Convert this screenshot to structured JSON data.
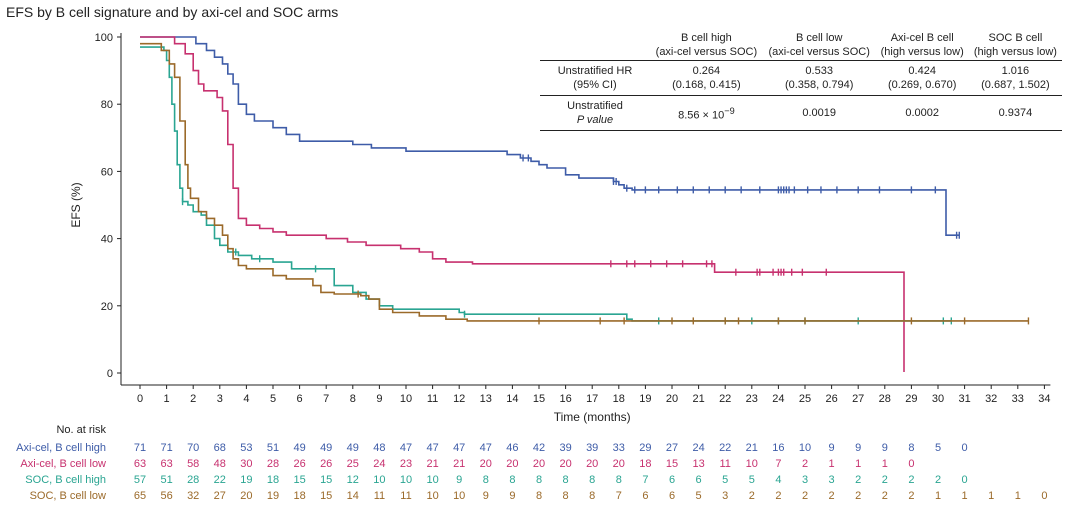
{
  "chart_data": {
    "type": "line",
    "subtype": "kaplan-meier step",
    "title": "EFS by B cell signature and by axi-cel and SOC arms",
    "xlabel": "Time (months)",
    "ylabel": "EFS (%)",
    "xlim": [
      0,
      34
    ],
    "ylim": [
      0,
      100
    ],
    "xticks": [
      0,
      1,
      2,
      3,
      4,
      5,
      6,
      7,
      8,
      9,
      10,
      11,
      12,
      13,
      14,
      15,
      16,
      17,
      18,
      19,
      20,
      21,
      22,
      23,
      24,
      25,
      26,
      27,
      28,
      29,
      30,
      31,
      32,
      33,
      34
    ],
    "yticks": [
      0,
      20,
      40,
      60,
      80,
      100
    ],
    "series": [
      {
        "name": "Axi-cel, B cell high",
        "color": "#3e5ca8",
        "steps": [
          [
            0,
            100
          ],
          [
            1.9,
            100
          ],
          [
            2.1,
            98
          ],
          [
            2.5,
            96
          ],
          [
            2.8,
            94
          ],
          [
            3.1,
            92
          ],
          [
            3.3,
            89
          ],
          [
            3.5,
            86
          ],
          [
            3.7,
            80
          ],
          [
            4.0,
            77
          ],
          [
            4.3,
            75
          ],
          [
            5.0,
            73
          ],
          [
            5.5,
            71
          ],
          [
            6.0,
            69
          ],
          [
            8.0,
            68
          ],
          [
            8.7,
            67
          ],
          [
            10.0,
            66
          ],
          [
            12.5,
            66
          ],
          [
            13.8,
            65
          ],
          [
            14.3,
            64
          ],
          [
            14.7,
            63
          ],
          [
            15.0,
            62
          ],
          [
            15.3,
            61
          ],
          [
            16.0,
            59
          ],
          [
            16.5,
            58
          ],
          [
            17.8,
            57
          ],
          [
            18.0,
            56
          ],
          [
            18.2,
            55
          ],
          [
            18.5,
            54.5
          ],
          [
            30.2,
            54.5
          ],
          [
            30.3,
            41
          ],
          [
            30.8,
            41
          ]
        ],
        "censor_x": [
          14.4,
          14.6,
          17.8,
          17.9,
          18.3,
          18.6,
          19.0,
          19.5,
          20.2,
          20.8,
          21.4,
          22.0,
          22.6,
          23.3,
          24.0,
          24.1,
          24.2,
          24.3,
          24.4,
          24.6,
          25.1,
          25.6,
          26.2,
          27.0,
          27.8,
          29.0,
          29.9,
          30.7,
          30.8
        ]
      },
      {
        "name": "Axi-cel, B cell low",
        "color": "#c7316f",
        "steps": [
          [
            0,
            100
          ],
          [
            1.3,
            98
          ],
          [
            1.7,
            95
          ],
          [
            2.0,
            90
          ],
          [
            2.2,
            86
          ],
          [
            2.4,
            84
          ],
          [
            2.9,
            82
          ],
          [
            3.1,
            78
          ],
          [
            3.3,
            68
          ],
          [
            3.5,
            55
          ],
          [
            3.7,
            46
          ],
          [
            4.0,
            44
          ],
          [
            4.5,
            43
          ],
          [
            5.0,
            42
          ],
          [
            5.5,
            41
          ],
          [
            7.0,
            40
          ],
          [
            7.8,
            39
          ],
          [
            8.5,
            38
          ],
          [
            9.8,
            37
          ],
          [
            10.5,
            36
          ],
          [
            11.0,
            34
          ],
          [
            11.5,
            33
          ],
          [
            12.0,
            33
          ],
          [
            12.5,
            32.5
          ],
          [
            21.5,
            32.5
          ],
          [
            21.6,
            30
          ],
          [
            28.7,
            30
          ],
          [
            28.72,
            0.3
          ]
        ],
        "censor_x": [
          17.7,
          18.3,
          18.6,
          19.2,
          19.8,
          20.4,
          21.3,
          21.5,
          22.4,
          23.2,
          23.3,
          23.8,
          24.0,
          24.1,
          24.2,
          24.5,
          24.9,
          25.8
        ]
      },
      {
        "name": "SOC, B cell high",
        "color": "#2aa592",
        "steps": [
          [
            0,
            97
          ],
          [
            0.9,
            96
          ],
          [
            1.0,
            93
          ],
          [
            1.1,
            88
          ],
          [
            1.2,
            80
          ],
          [
            1.3,
            72
          ],
          [
            1.4,
            62
          ],
          [
            1.5,
            55
          ],
          [
            1.6,
            51
          ],
          [
            1.8,
            50
          ],
          [
            2.0,
            48
          ],
          [
            2.3,
            47
          ],
          [
            2.5,
            44
          ],
          [
            2.8,
            40
          ],
          [
            3.0,
            38
          ],
          [
            3.3,
            36
          ],
          [
            3.7,
            35
          ],
          [
            4.2,
            34
          ],
          [
            5.0,
            33
          ],
          [
            5.7,
            31
          ],
          [
            6.5,
            31
          ],
          [
            7.3,
            26
          ],
          [
            8.0,
            24
          ],
          [
            8.5,
            22
          ],
          [
            9.0,
            20
          ],
          [
            9.5,
            19
          ],
          [
            10.0,
            19
          ],
          [
            12.0,
            18
          ],
          [
            12.2,
            17.5
          ],
          [
            18.0,
            17.5
          ],
          [
            18.3,
            16
          ],
          [
            18.5,
            15.5
          ],
          [
            30.5,
            15.5
          ]
        ],
        "censor_x": [
          1.6,
          3.6,
          4.5,
          6.6,
          12.2,
          19.5,
          22.0,
          23.0,
          24.0,
          25.0,
          27.0,
          30.2,
          30.5
        ]
      },
      {
        "name": "SOC, B cell low",
        "color": "#9b6a2a",
        "steps": [
          [
            0,
            98
          ],
          [
            0.8,
            96
          ],
          [
            1.1,
            92
          ],
          [
            1.3,
            88
          ],
          [
            1.5,
            75
          ],
          [
            1.7,
            62
          ],
          [
            1.8,
            55
          ],
          [
            1.9,
            52
          ],
          [
            2.2,
            48
          ],
          [
            2.5,
            46
          ],
          [
            2.8,
            44
          ],
          [
            3.1,
            41
          ],
          [
            3.3,
            37
          ],
          [
            3.5,
            34
          ],
          [
            3.7,
            32
          ],
          [
            4.0,
            31
          ],
          [
            5.0,
            29
          ],
          [
            5.5,
            28
          ],
          [
            6.5,
            26
          ],
          [
            6.8,
            24
          ],
          [
            7.3,
            23.5
          ],
          [
            8.3,
            23
          ],
          [
            8.6,
            22
          ],
          [
            9.0,
            19
          ],
          [
            9.5,
            18
          ],
          [
            10.5,
            17
          ],
          [
            11.5,
            16
          ],
          [
            12.0,
            16
          ],
          [
            12.3,
            15.5
          ],
          [
            33.4,
            15.5
          ]
        ],
        "censor_x": [
          8.2,
          15.0,
          17.3,
          18.2,
          20.0,
          20.8,
          22.0,
          22.5,
          24.0,
          25.0,
          29.0,
          31.0,
          33.4
        ]
      }
    ]
  },
  "hr_table": {
    "headers": [
      {
        "line1": "B cell high",
        "line2": "(axi-cel versus SOC)"
      },
      {
        "line1": "B cell low",
        "line2": "(axi-cel versus SOC)"
      },
      {
        "line1": "Axi-cel B cell",
        "line2": "(high versus low)"
      },
      {
        "line1": "SOC B cell",
        "line2": "(high versus low)"
      }
    ],
    "row_hr": {
      "label1": "Unstratified HR",
      "label2": "(95% CI)",
      "cells": [
        {
          "v": "0.264",
          "ci": "(0.168, 0.415)"
        },
        {
          "v": "0.533",
          "ci": "(0.358, 0.794)"
        },
        {
          "v": "0.424",
          "ci": "(0.269, 0.670)"
        },
        {
          "v": "1.016",
          "ci": "(0.687, 1.502)"
        }
      ]
    },
    "row_p": {
      "label1": "Unstratified",
      "label2": "P value",
      "p1_base": "8.56 × 10",
      "p1_exp": "−9",
      "p2": "0.0019",
      "p3": "0.0002",
      "p4": "0.9374"
    }
  },
  "risk_table": {
    "title": "No. at risk",
    "rows": [
      {
        "label": "Axi-cel, B cell high",
        "color": "#3e5ca8",
        "values": [
          "71",
          "71",
          "70",
          "68",
          "53",
          "51",
          "49",
          "49",
          "49",
          "48",
          "47",
          "47",
          "47",
          "47",
          "46",
          "42",
          "39",
          "39",
          "33",
          "29",
          "27",
          "24",
          "22",
          "21",
          "16",
          "10",
          "9",
          "9",
          "9",
          "8",
          "5",
          "0"
        ]
      },
      {
        "label": "Axi-cel, B cell low",
        "color": "#c7316f",
        "values": [
          "63",
          "63",
          "58",
          "48",
          "30",
          "28",
          "26",
          "26",
          "25",
          "24",
          "23",
          "21",
          "21",
          "20",
          "20",
          "20",
          "20",
          "20",
          "20",
          "18",
          "15",
          "13",
          "11",
          "10",
          "7",
          "2",
          "1",
          "1",
          "1",
          "0"
        ]
      },
      {
        "label": "SOC, B cell high",
        "color": "#2aa592",
        "values": [
          "57",
          "51",
          "28",
          "22",
          "19",
          "18",
          "15",
          "15",
          "12",
          "10",
          "10",
          "10",
          "9",
          "8",
          "8",
          "8",
          "8",
          "8",
          "8",
          "7",
          "6",
          "6",
          "5",
          "5",
          "4",
          "3",
          "3",
          "2",
          "2",
          "2",
          "2",
          "0"
        ]
      },
      {
        "label": "SOC, B cell low",
        "color": "#9b6a2a",
        "values": [
          "65",
          "56",
          "32",
          "27",
          "20",
          "19",
          "18",
          "15",
          "14",
          "11",
          "11",
          "10",
          "10",
          "9",
          "9",
          "8",
          "8",
          "8",
          "7",
          "6",
          "6",
          "5",
          "3",
          "2",
          "2",
          "2",
          "2",
          "2",
          "2",
          "2",
          "1",
          "1",
          "1",
          "1",
          "0"
        ]
      }
    ]
  }
}
